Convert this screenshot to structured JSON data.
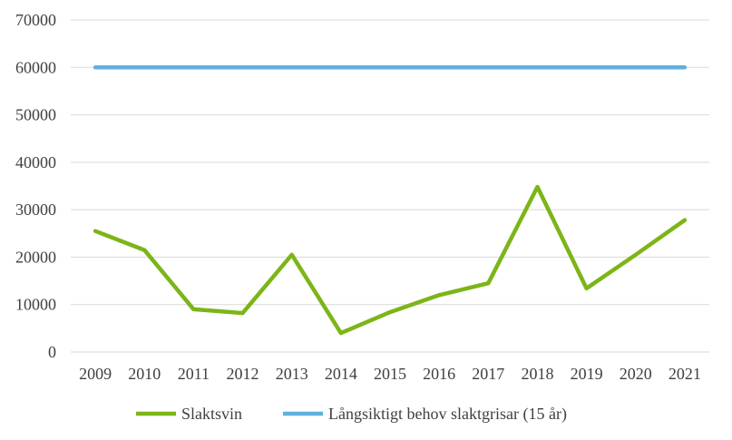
{
  "chart_data": {
    "type": "line",
    "categories": [
      "2009",
      "2010",
      "2011",
      "2012",
      "2013",
      "2014",
      "2015",
      "2016",
      "2017",
      "2018",
      "2019",
      "2020",
      "2021"
    ],
    "ylim": [
      0,
      70000
    ],
    "yticks": [
      0,
      10000,
      20000,
      30000,
      40000,
      50000,
      60000,
      70000
    ],
    "ytick_labels": [
      "0",
      "10000",
      "20000",
      "30000",
      "40000",
      "50000",
      "60000",
      "70000"
    ],
    "grid": true,
    "legend_position": "bottom",
    "series": [
      {
        "name": "Slaktsvin",
        "color": "#7cb518",
        "values": [
          25500,
          21500,
          9000,
          8200,
          20500,
          4000,
          8400,
          12000,
          14500,
          34800,
          13400,
          20500,
          27800
        ]
      },
      {
        "name": "Långsiktigt behov slaktgrisar (15 år)",
        "color": "#5fb0e0",
        "values": [
          60000,
          60000,
          60000,
          60000,
          60000,
          60000,
          60000,
          60000,
          60000,
          60000,
          60000,
          60000,
          60000
        ]
      }
    ]
  }
}
